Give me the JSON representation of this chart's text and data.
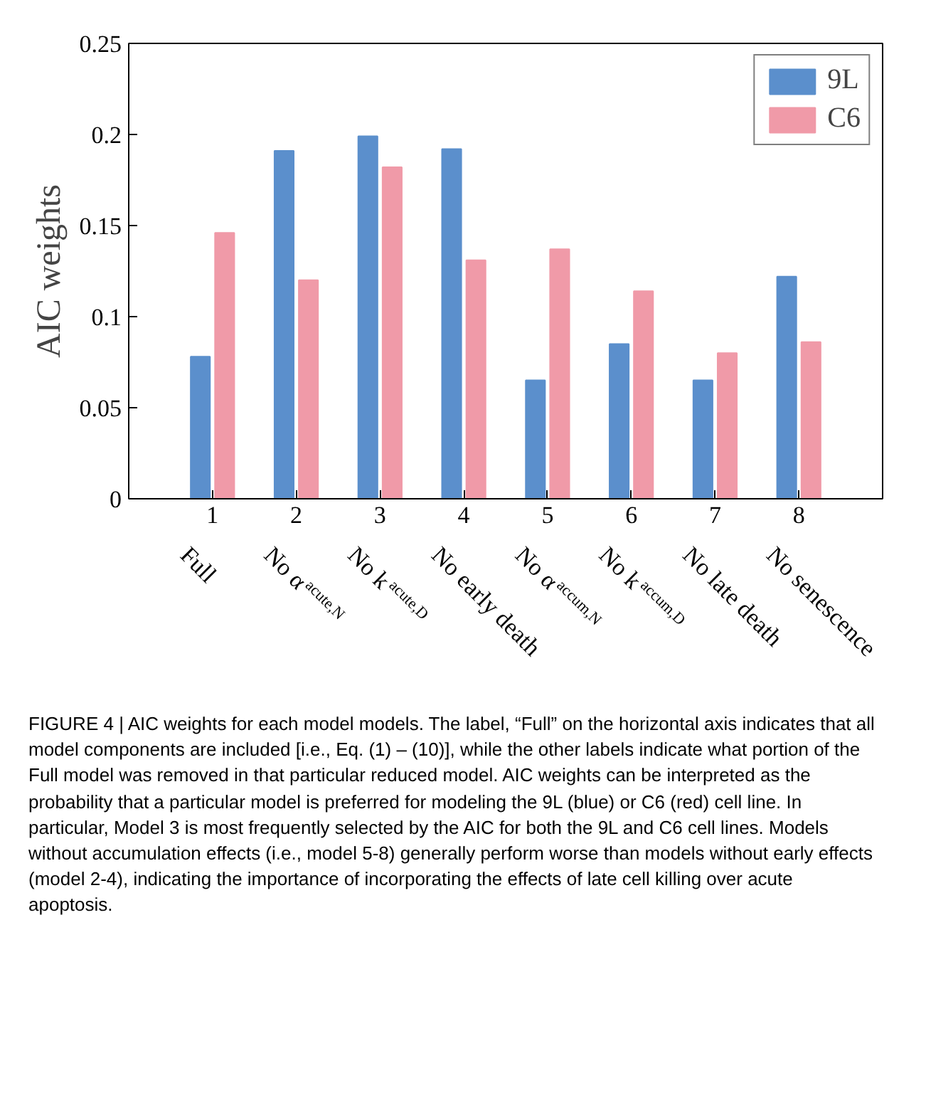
{
  "chart_data": {
    "type": "bar",
    "ylabel": "AIC weights",
    "categories": [
      "1",
      "2",
      "3",
      "4",
      "5",
      "6",
      "7",
      "8"
    ],
    "series": [
      {
        "name": "9L",
        "color": "#5b8fcc",
        "values": [
          0.078,
          0.191,
          0.199,
          0.192,
          0.065,
          0.085,
          0.065,
          0.122
        ]
      },
      {
        "name": "C6",
        "color": "#f09aa8",
        "values": [
          0.146,
          0.12,
          0.182,
          0.131,
          0.137,
          0.114,
          0.08,
          0.086
        ]
      }
    ],
    "ylim": [
      0,
      0.25
    ],
    "yticks": [
      0,
      0.05,
      0.1,
      0.15,
      0.2,
      0.25
    ],
    "grid": false,
    "legend": "top right",
    "annotations": [
      "Full",
      "No α$_{acute,N}$",
      "No k$_{acute,D}$",
      "No early death",
      "No α$_{accum,N}$",
      "No k$_{accum,D}$",
      "No late death",
      "No senescence",
      "FIGURE 4 | AIC weights for each model models. The label, “Full” on the horizontal axis indicates that all model components are included [i.e., Eq. (1) – (10)], while the other labels indicate what portion of the Full model was removed in that particular reduced model. AIC weights can be interpreted as the probability that a particular model is preferred for modeling the 9L (blue) or C6 (red) cell line. In particular, Model 3 is most frequently selected by the AIC for both the 9L and C6 cell lines. Models without accumulation effects (i.e., model 5-8) generally perform worse than models without early effects (model 2-4), indicating the importance of incorporating the effects of late cell killing over acute apoptosis."
    ]
  }
}
